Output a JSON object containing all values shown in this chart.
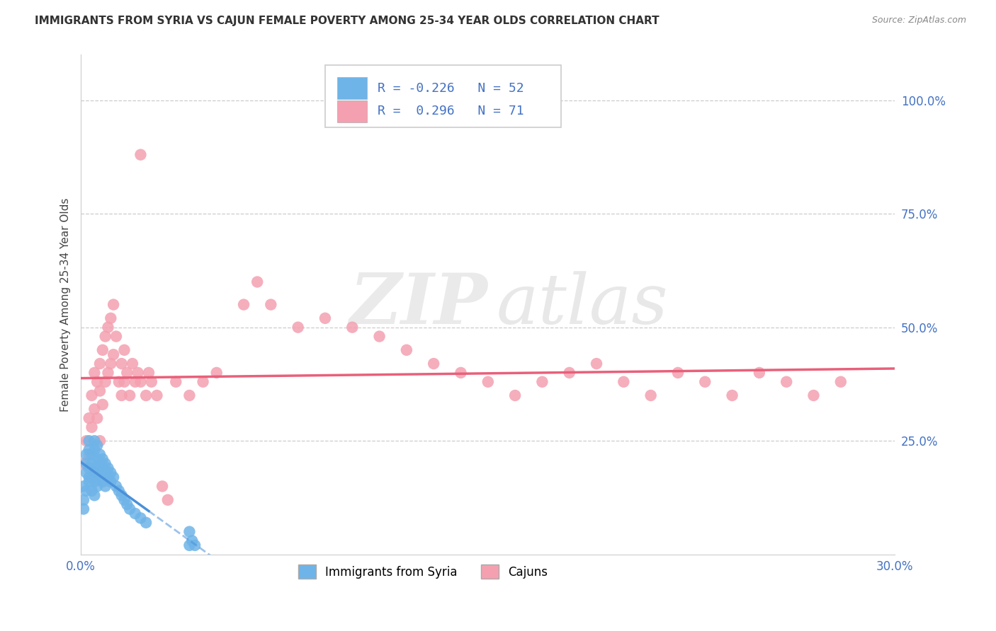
{
  "title": "IMMIGRANTS FROM SYRIA VS CAJUN FEMALE POVERTY AMONG 25-34 YEAR OLDS CORRELATION CHART",
  "source": "Source: ZipAtlas.com",
  "ylabel": "Female Poverty Among 25-34 Year Olds",
  "xlim": [
    0.0,
    0.3
  ],
  "ylim": [
    0.0,
    1.1
  ],
  "blue_R": -0.226,
  "blue_N": 52,
  "pink_R": 0.296,
  "pink_N": 71,
  "blue_color": "#6EB4E8",
  "pink_color": "#F4A0B0",
  "blue_line_color": "#4A90D9",
  "pink_line_color": "#E8607A",
  "watermark_zip": "ZIP",
  "watermark_atlas": "atlas",
  "legend_label_blue": "Immigrants from Syria",
  "legend_label_pink": "Cajuns",
  "blue_scatter_x": [
    0.001,
    0.001,
    0.001,
    0.002,
    0.002,
    0.002,
    0.002,
    0.003,
    0.003,
    0.003,
    0.003,
    0.003,
    0.004,
    0.004,
    0.004,
    0.004,
    0.005,
    0.005,
    0.005,
    0.005,
    0.005,
    0.006,
    0.006,
    0.006,
    0.006,
    0.007,
    0.007,
    0.007,
    0.008,
    0.008,
    0.008,
    0.009,
    0.009,
    0.009,
    0.01,
    0.01,
    0.011,
    0.011,
    0.012,
    0.013,
    0.014,
    0.015,
    0.016,
    0.017,
    0.018,
    0.02,
    0.022,
    0.024,
    0.04,
    0.042,
    0.04,
    0.041
  ],
  "blue_scatter_y": [
    0.12,
    0.15,
    0.1,
    0.18,
    0.14,
    0.22,
    0.2,
    0.17,
    0.25,
    0.23,
    0.19,
    0.16,
    0.22,
    0.2,
    0.17,
    0.14,
    0.25,
    0.23,
    0.19,
    0.16,
    0.13,
    0.24,
    0.21,
    0.18,
    0.15,
    0.22,
    0.2,
    0.17,
    0.21,
    0.19,
    0.16,
    0.2,
    0.18,
    0.15,
    0.19,
    0.17,
    0.18,
    0.16,
    0.17,
    0.15,
    0.14,
    0.13,
    0.12,
    0.11,
    0.1,
    0.09,
    0.08,
    0.07,
    0.05,
    0.02,
    0.02,
    0.03
  ],
  "pink_scatter_x": [
    0.001,
    0.002,
    0.003,
    0.003,
    0.004,
    0.004,
    0.005,
    0.005,
    0.005,
    0.006,
    0.006,
    0.007,
    0.007,
    0.007,
    0.008,
    0.008,
    0.009,
    0.009,
    0.01,
    0.01,
    0.011,
    0.011,
    0.012,
    0.012,
    0.013,
    0.014,
    0.015,
    0.015,
    0.016,
    0.016,
    0.017,
    0.018,
    0.019,
    0.02,
    0.021,
    0.022,
    0.024,
    0.025,
    0.026,
    0.028,
    0.03,
    0.032,
    0.035,
    0.04,
    0.045,
    0.05,
    0.06,
    0.065,
    0.07,
    0.08,
    0.09,
    0.1,
    0.11,
    0.12,
    0.13,
    0.14,
    0.15,
    0.16,
    0.17,
    0.18,
    0.19,
    0.2,
    0.21,
    0.22,
    0.23,
    0.24,
    0.25,
    0.26,
    0.27,
    0.28,
    0.022
  ],
  "pink_scatter_y": [
    0.2,
    0.25,
    0.3,
    0.22,
    0.35,
    0.28,
    0.4,
    0.32,
    0.18,
    0.38,
    0.3,
    0.42,
    0.36,
    0.25,
    0.45,
    0.33,
    0.48,
    0.38,
    0.5,
    0.4,
    0.52,
    0.42,
    0.55,
    0.44,
    0.48,
    0.38,
    0.42,
    0.35,
    0.45,
    0.38,
    0.4,
    0.35,
    0.42,
    0.38,
    0.4,
    0.38,
    0.35,
    0.4,
    0.38,
    0.35,
    0.15,
    0.12,
    0.38,
    0.35,
    0.38,
    0.4,
    0.55,
    0.6,
    0.55,
    0.5,
    0.52,
    0.5,
    0.48,
    0.45,
    0.42,
    0.4,
    0.38,
    0.35,
    0.38,
    0.4,
    0.42,
    0.38,
    0.35,
    0.4,
    0.38,
    0.35,
    0.4,
    0.38,
    0.35,
    0.38,
    0.88
  ],
  "background_color": "#FFFFFF",
  "grid_color": "#CCCCCC",
  "title_color": "#333333",
  "source_color": "#888888",
  "axis_color": "#4472C4",
  "ylabel_color": "#444444"
}
